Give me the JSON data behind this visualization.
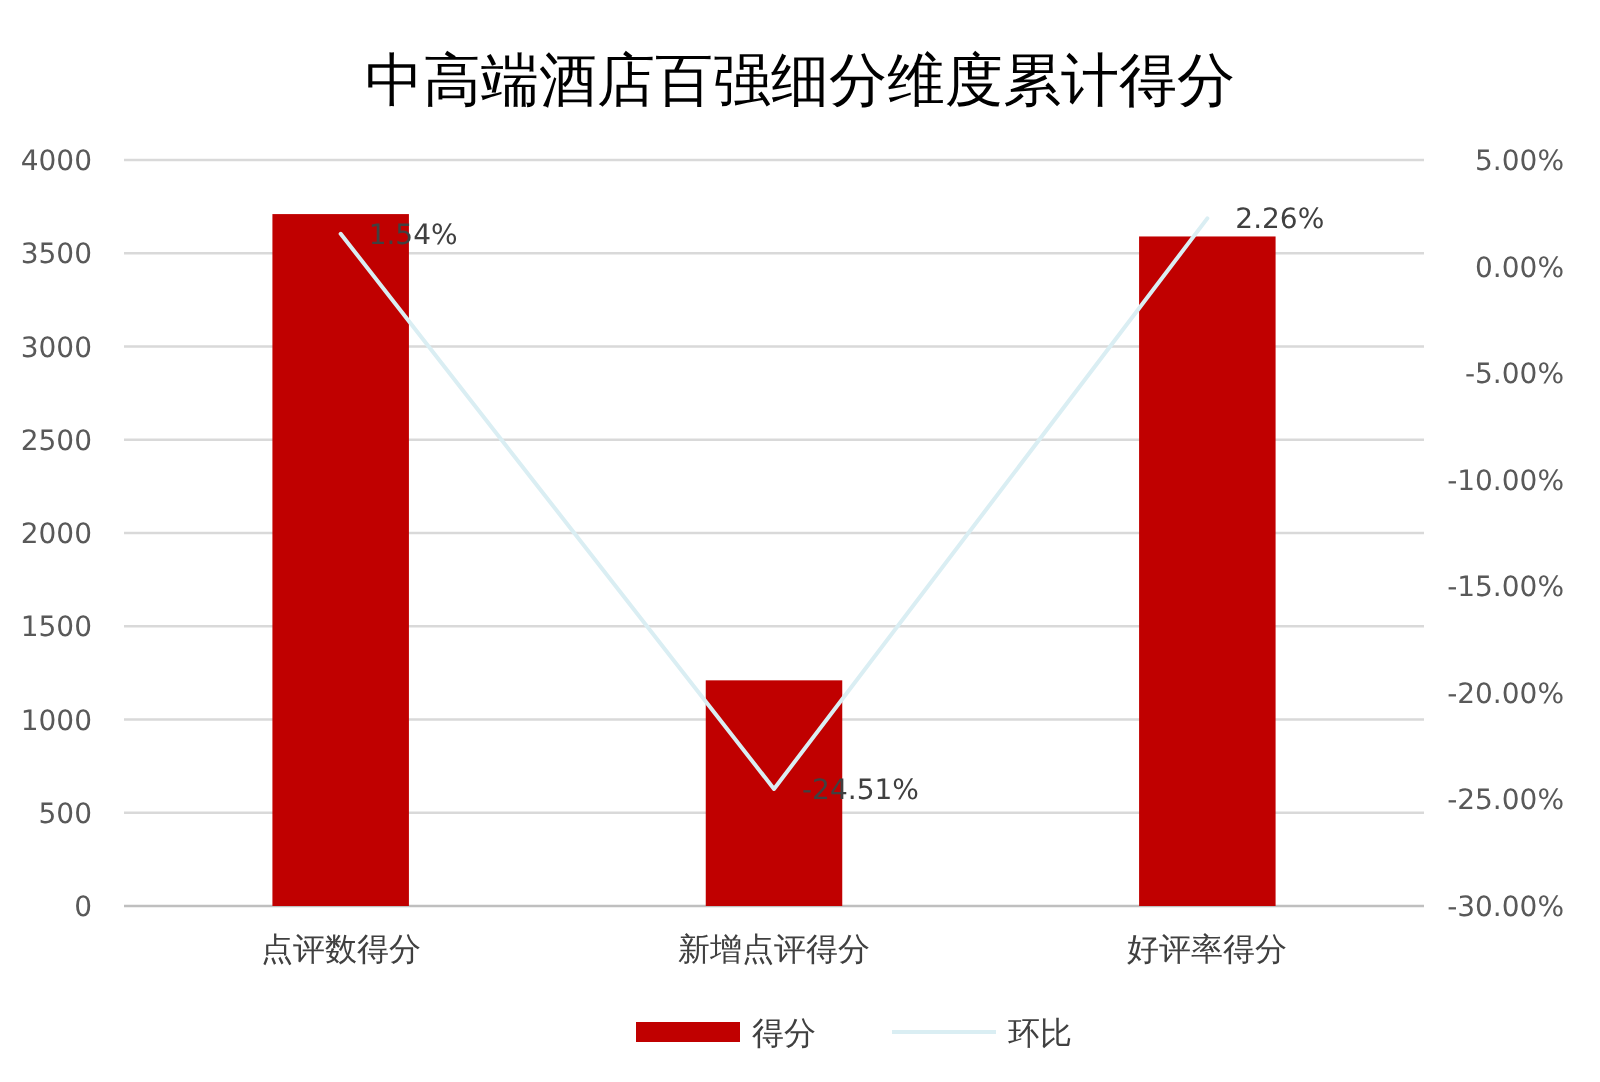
{
  "chart_data": {
    "type": "bar",
    "title": "中高端酒店百强细分维度累计得分",
    "categories": [
      "点评数得分",
      "新增点评得分",
      "好评率得分"
    ],
    "series": [
      {
        "name": "得分",
        "color": "#c00000",
        "values": [
          3710,
          1210,
          3590
        ]
      },
      {
        "name": "环比",
        "type": "line",
        "axis": "y2",
        "color": "#daeef3",
        "values": [
          1.54,
          -24.51,
          2.26
        ],
        "value_labels": [
          "1.54%",
          "-24.51%",
          "2.26%"
        ]
      }
    ],
    "ylim": [
      0,
      4000
    ],
    "yticks": [
      0,
      500,
      1000,
      1500,
      2000,
      2500,
      3000,
      3500,
      4000
    ],
    "y2lim": [
      -30,
      5
    ],
    "y2ticks": [
      {
        "value": -30,
        "label": "-30.00%"
      },
      {
        "value": -25,
        "label": "-25.00%"
      },
      {
        "value": -20,
        "label": "-20.00%"
      },
      {
        "value": -15,
        "label": "-15.00%"
      },
      {
        "value": -10,
        "label": "-10.00%"
      },
      {
        "value": -5,
        "label": "-5.00%"
      },
      {
        "value": 0,
        "label": "0.00%"
      },
      {
        "value": 5,
        "label": "5.00%"
      }
    ],
    "grid": "y",
    "legend": "bottom",
    "marker": "none",
    "line_style": "solid"
  }
}
